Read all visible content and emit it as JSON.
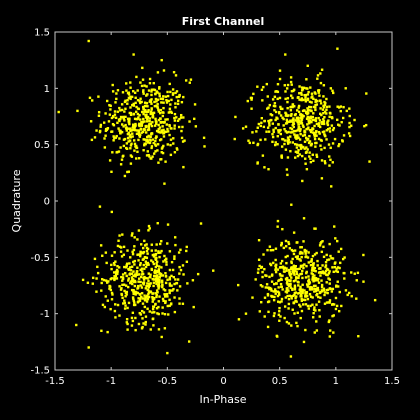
{
  "chart_data": {
    "type": "scatter",
    "title": "First Channel",
    "xlabel": "In-Phase",
    "ylabel": "Quadrature",
    "xlim": [
      -1.5,
      1.5
    ],
    "ylim": [
      -1.5,
      1.5
    ],
    "xticks": [
      -1.5,
      -1,
      -0.5,
      0,
      0.5,
      1,
      1.5
    ],
    "yticks": [
      -1.5,
      -1,
      -0.5,
      0,
      0.5,
      1,
      1.5
    ],
    "xtick_labels": [
      "-1.5",
      "-1",
      "-0.5",
      "0",
      "0.5",
      "1",
      "1.5"
    ],
    "ytick_labels": [
      "-1.5",
      "-1",
      "-0.5",
      "0",
      "0.5",
      "1",
      "1.5"
    ],
    "grid": false,
    "legend": false,
    "colors": {
      "background": "#000000",
      "axes": "#c8c8c8",
      "text": "#ffffff",
      "marker": "#ffff00"
    },
    "series": [
      {
        "cluster_centers": [
          [
            -0.7,
            0.7
          ],
          [
            0.7,
            0.7
          ],
          [
            -0.7,
            -0.7
          ],
          [
            0.7,
            -0.7
          ]
        ],
        "cluster_spread": 0.19,
        "points_per_cluster": 500,
        "points": [
          [
            -1.2,
            1.42
          ],
          [
            -0.8,
            1.3
          ],
          [
            -0.55,
            1.25
          ],
          [
            0.55,
            1.3
          ],
          [
            0.75,
            1.2
          ],
          [
            -1.2,
            -1.3
          ],
          [
            0.6,
            -1.38
          ],
          [
            1.35,
            -0.88
          ],
          [
            -0.5,
            -1.35
          ],
          [
            0.95,
            -1.15
          ],
          [
            -1.3,
            0.8
          ],
          [
            1.3,
            0.35
          ],
          [
            -0.2,
            -0.2
          ],
          [
            0.25,
            0.9
          ],
          [
            -1.1,
            -0.05
          ],
          [
            0.2,
            -1.0
          ],
          [
            1.2,
            -1.2
          ],
          [
            -0.3,
            1.05
          ],
          [
            0.1,
            0.55
          ],
          [
            -1.25,
            -0.7
          ]
        ]
      }
    ]
  }
}
